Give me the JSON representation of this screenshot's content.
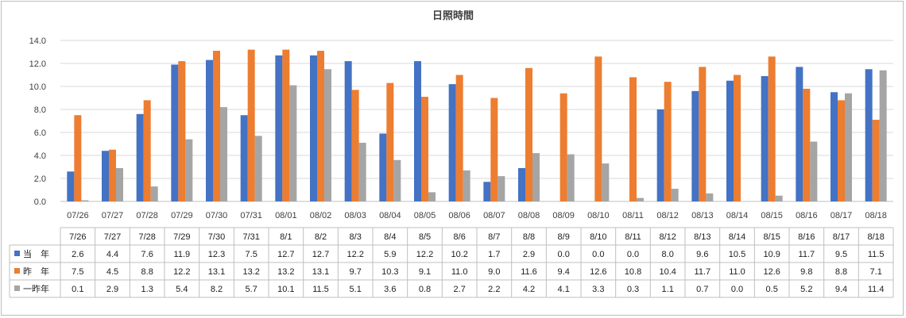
{
  "chart_data": {
    "type": "bar",
    "title": "日照時間",
    "categories": [
      "07/26",
      "07/27",
      "07/28",
      "07/29",
      "07/30",
      "07/31",
      "08/01",
      "08/02",
      "08/03",
      "08/04",
      "08/05",
      "08/06",
      "08/07",
      "08/08",
      "08/09",
      "08/10",
      "08/11",
      "08/12",
      "08/13",
      "08/14",
      "08/15",
      "08/16",
      "08/17",
      "08/18"
    ],
    "table_headers": [
      "7/26",
      "7/27",
      "7/28",
      "7/29",
      "7/30",
      "7/31",
      "8/1",
      "8/2",
      "8/3",
      "8/4",
      "8/5",
      "8/6",
      "8/7",
      "8/8",
      "8/9",
      "8/10",
      "8/11",
      "8/12",
      "8/13",
      "8/14",
      "8/15",
      "8/16",
      "8/17",
      "8/18"
    ],
    "ylim": [
      0,
      14
    ],
    "yticks": [
      "0.0",
      "2.0",
      "4.0",
      "6.0",
      "8.0",
      "10.0",
      "12.0",
      "14.0"
    ],
    "grid": true,
    "legend_position": "table-left",
    "series": [
      {
        "name": "当　年",
        "color": "#4472C4",
        "values": [
          2.6,
          4.4,
          7.6,
          11.9,
          12.3,
          7.5,
          12.7,
          12.7,
          12.2,
          5.9,
          12.2,
          10.2,
          1.7,
          2.9,
          0.0,
          0.0,
          0.0,
          8.0,
          9.6,
          10.5,
          10.9,
          11.7,
          9.5,
          11.5
        ]
      },
      {
        "name": "昨　年",
        "color": "#ED7D31",
        "values": [
          7.5,
          4.5,
          8.8,
          12.2,
          13.1,
          13.2,
          13.2,
          13.1,
          9.7,
          10.3,
          9.1,
          11.0,
          9.0,
          11.6,
          9.4,
          12.6,
          10.8,
          10.4,
          11.7,
          11.0,
          12.6,
          9.8,
          8.8,
          7.1
        ]
      },
      {
        "name": "一昨年",
        "color": "#A5A5A5",
        "values": [
          0.1,
          2.9,
          1.3,
          5.4,
          8.2,
          5.7,
          10.1,
          11.5,
          5.1,
          3.6,
          0.8,
          2.7,
          2.2,
          4.2,
          4.1,
          3.3,
          0.3,
          1.1,
          0.7,
          0.0,
          0.5,
          5.2,
          9.4,
          11.4
        ]
      }
    ]
  }
}
